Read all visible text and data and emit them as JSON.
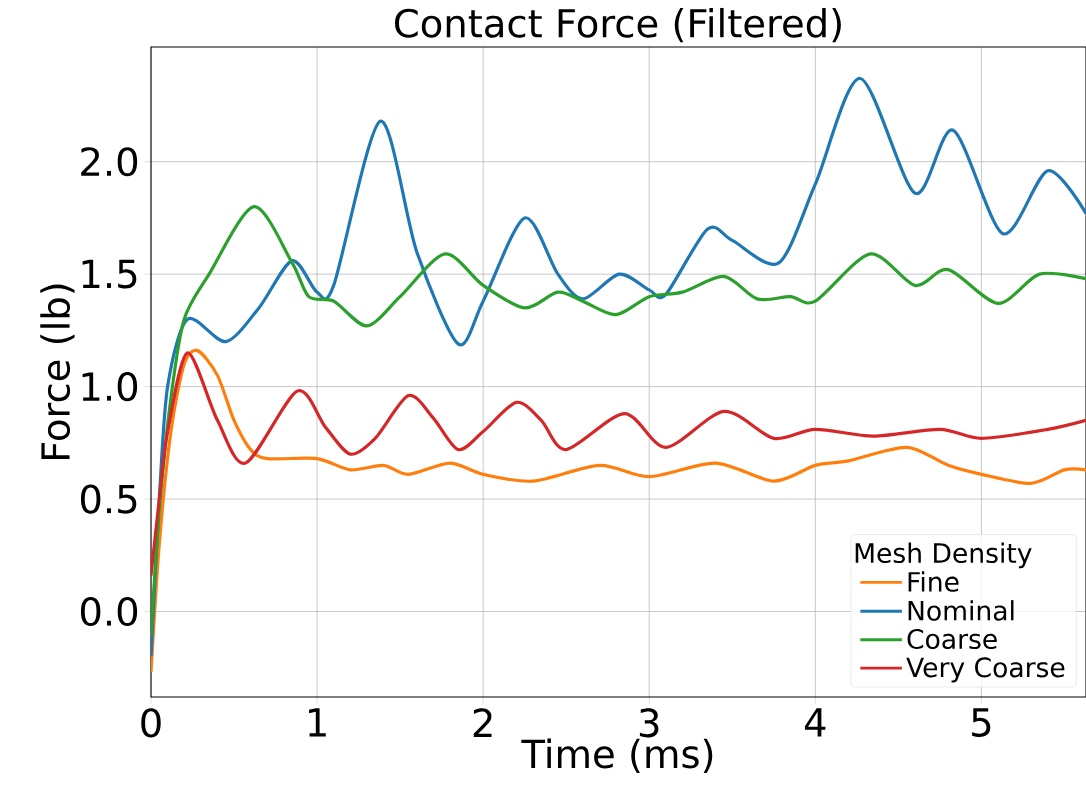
{
  "chart_data": {
    "type": "line",
    "title": "Contact Force (Filtered)",
    "xlabel": "Time (ms)",
    "ylabel": "Force (lb)",
    "legend_title": "Mesh Density",
    "xlim": [
      0,
      5.63
    ],
    "ylim": [
      -0.38,
      2.51
    ],
    "xticks": [
      0,
      1,
      2,
      3,
      4,
      5
    ],
    "yticks": [
      {
        "value": 0,
        "label": "0.0"
      },
      0.5,
      {
        "value": 1,
        "label": "1.0"
      },
      1.5,
      {
        "value": 2,
        "label": "2.0"
      }
    ],
    "grid": true,
    "legend": "bottom right",
    "line_style": "solid",
    "series": [
      {
        "name": "Fine",
        "color": "#ff7f0e",
        "x": [
          0,
          0.05,
          0.12,
          0.2,
          0.28,
          0.4,
          0.5,
          0.6,
          0.7,
          1.0,
          1.2,
          1.4,
          1.55,
          1.8,
          2.0,
          2.3,
          2.7,
          3.0,
          3.4,
          3.75,
          4.0,
          4.2,
          4.55,
          4.8,
          5.0,
          5.3,
          5.5,
          5.63
        ],
        "values": [
          -0.27,
          0.3,
          0.8,
          1.1,
          1.16,
          1.05,
          0.85,
          0.72,
          0.68,
          0.68,
          0.63,
          0.65,
          0.61,
          0.66,
          0.61,
          0.58,
          0.65,
          0.6,
          0.66,
          0.58,
          0.65,
          0.67,
          0.73,
          0.65,
          0.61,
          0.57,
          0.63,
          0.63
        ]
      },
      {
        "name": "Nominal",
        "color": "#1f77b4",
        "x": [
          0,
          0.05,
          0.1,
          0.22,
          0.45,
          0.65,
          0.85,
          1.0,
          1.1,
          1.38,
          1.6,
          1.85,
          2.0,
          2.25,
          2.45,
          2.6,
          2.82,
          3.0,
          3.1,
          3.35,
          3.5,
          3.78,
          4.0,
          4.27,
          4.6,
          4.83,
          5.13,
          5.4,
          5.63
        ],
        "values": [
          -0.2,
          0.5,
          1.0,
          1.3,
          1.2,
          1.35,
          1.56,
          1.42,
          1.45,
          2.18,
          1.6,
          1.19,
          1.38,
          1.75,
          1.5,
          1.39,
          1.5,
          1.43,
          1.41,
          1.7,
          1.65,
          1.55,
          1.9,
          2.37,
          1.86,
          2.14,
          1.68,
          1.96,
          1.77
        ]
      },
      {
        "name": "Coarse",
        "color": "#2ca02c",
        "x": [
          0,
          0.05,
          0.12,
          0.2,
          0.35,
          0.62,
          0.85,
          0.95,
          1.1,
          1.3,
          1.5,
          1.77,
          2.0,
          2.25,
          2.45,
          2.6,
          2.8,
          3.0,
          3.2,
          3.45,
          3.65,
          3.85,
          4.0,
          4.33,
          4.6,
          4.8,
          5.1,
          5.35,
          5.63
        ],
        "values": [
          -0.11,
          0.45,
          0.95,
          1.3,
          1.5,
          1.8,
          1.55,
          1.4,
          1.38,
          1.27,
          1.4,
          1.59,
          1.45,
          1.35,
          1.42,
          1.38,
          1.32,
          1.4,
          1.42,
          1.49,
          1.39,
          1.4,
          1.38,
          1.59,
          1.45,
          1.52,
          1.37,
          1.5,
          1.48
        ]
      },
      {
        "name": "Very Coarse",
        "color": "#d62728",
        "x": [
          0,
          0.05,
          0.1,
          0.22,
          0.4,
          0.57,
          0.88,
          1.05,
          1.2,
          1.35,
          1.55,
          1.7,
          1.85,
          2.0,
          2.2,
          2.35,
          2.5,
          2.85,
          3.1,
          3.45,
          3.75,
          4.0,
          4.35,
          4.75,
          5.0,
          5.4,
          5.63
        ],
        "values": [
          0.16,
          0.5,
          0.8,
          1.15,
          0.85,
          0.66,
          0.98,
          0.82,
          0.7,
          0.77,
          0.96,
          0.86,
          0.72,
          0.8,
          0.93,
          0.85,
          0.72,
          0.88,
          0.73,
          0.89,
          0.77,
          0.81,
          0.78,
          0.81,
          0.77,
          0.81,
          0.85
        ]
      }
    ]
  }
}
